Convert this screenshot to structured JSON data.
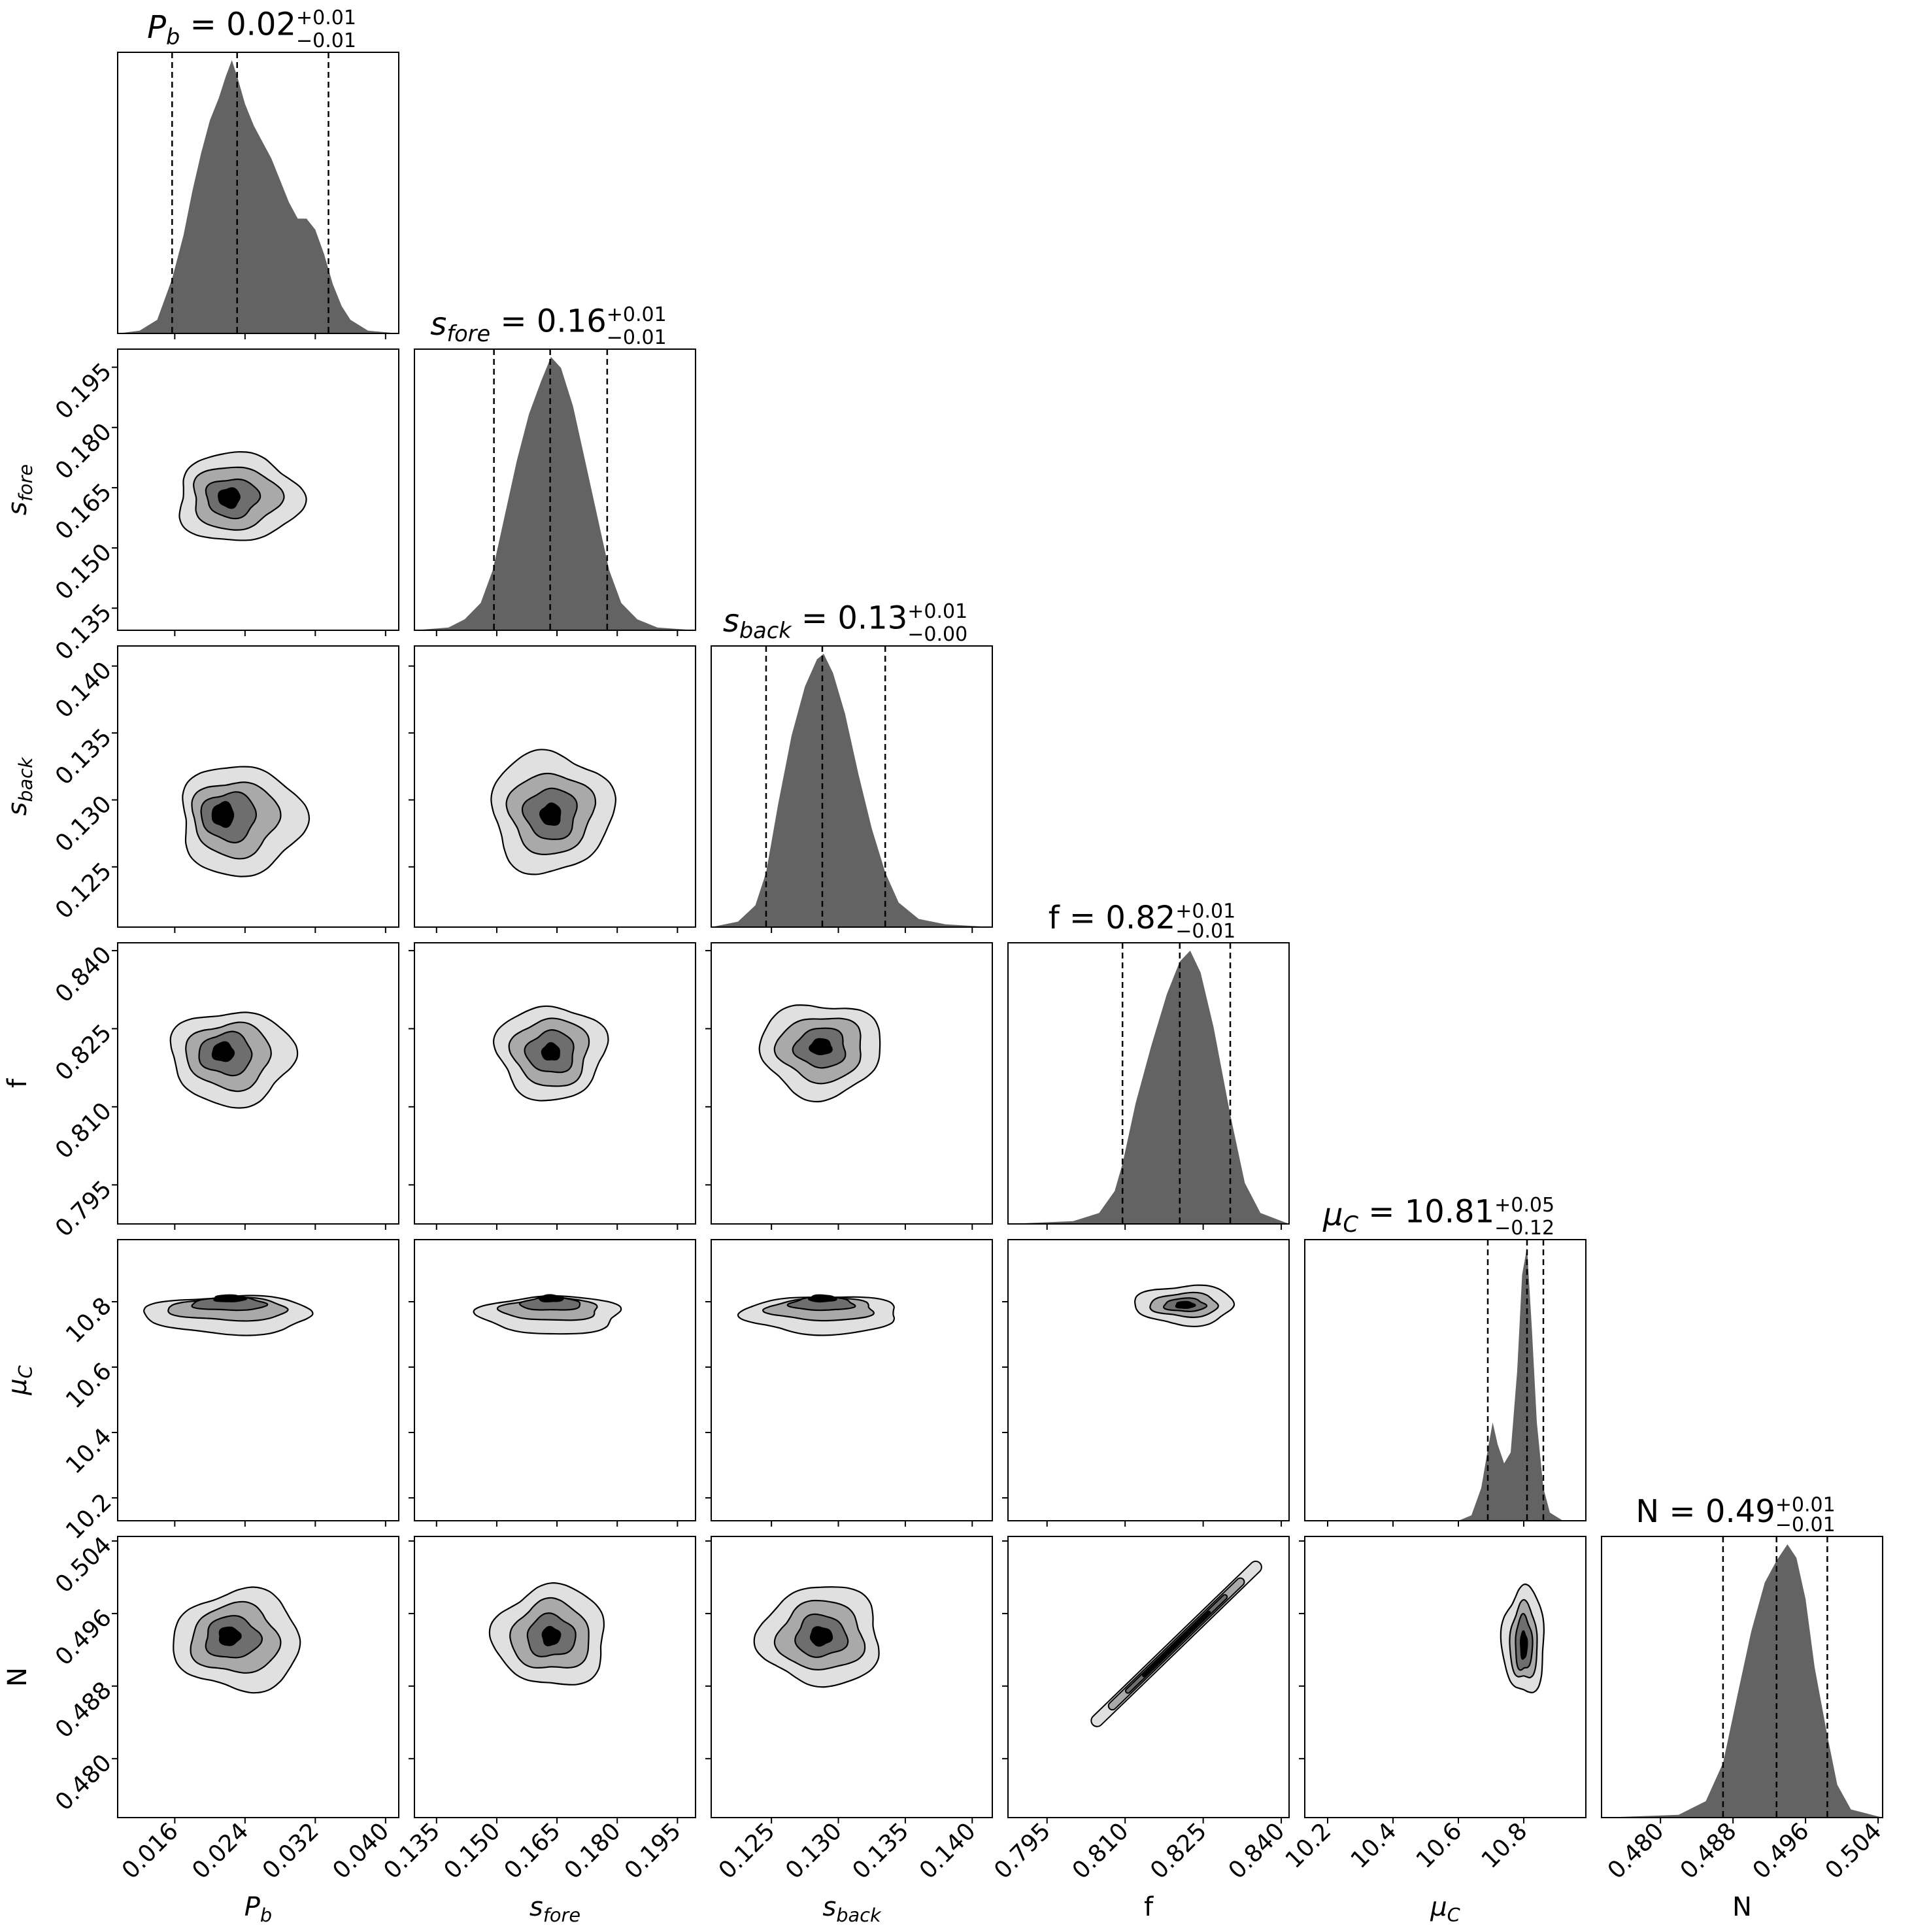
{
  "chart_data": {
    "type": "corner",
    "figure_title": "",
    "parameters": [
      {
        "key": "Pb",
        "label": "P",
        "sub": "b",
        "median": "0.02",
        "plus": "+0.01",
        "minus": "−0.01",
        "range": [
          0.0095,
          0.0415
        ],
        "ticks": [
          "0.016",
          "0.024",
          "0.032",
          "0.040"
        ],
        "tick_values": [
          0.016,
          0.024,
          0.032,
          0.04
        ],
        "quantiles": [
          0.0157,
          0.0231,
          0.0335
        ],
        "hist_curve": [
          [
            0.0095,
            0.0
          ],
          [
            0.012,
            0.01
          ],
          [
            0.014,
            0.05
          ],
          [
            0.0157,
            0.2
          ],
          [
            0.017,
            0.36
          ],
          [
            0.018,
            0.52
          ],
          [
            0.019,
            0.66
          ],
          [
            0.02,
            0.78
          ],
          [
            0.021,
            0.86
          ],
          [
            0.0218,
            0.94
          ],
          [
            0.0225,
            1.0
          ],
          [
            0.0232,
            0.93
          ],
          [
            0.024,
            0.84
          ],
          [
            0.025,
            0.76
          ],
          [
            0.026,
            0.7
          ],
          [
            0.027,
            0.64
          ],
          [
            0.028,
            0.56
          ],
          [
            0.029,
            0.48
          ],
          [
            0.03,
            0.42
          ],
          [
            0.031,
            0.42
          ],
          [
            0.032,
            0.38
          ],
          [
            0.033,
            0.29
          ],
          [
            0.034,
            0.18
          ],
          [
            0.035,
            0.1
          ],
          [
            0.036,
            0.05
          ],
          [
            0.038,
            0.01
          ],
          [
            0.0415,
            0.0
          ]
        ]
      },
      {
        "key": "sfore",
        "label": "s",
        "sub": "fore",
        "median": "0.16",
        "plus": "+0.01",
        "minus": "−0.01",
        "range": [
          0.1295,
          0.1995
        ],
        "ticks": [
          "0.135",
          "0.150",
          "0.165",
          "0.180",
          "0.195"
        ],
        "tick_values": [
          0.135,
          0.15,
          0.165,
          0.18,
          0.195
        ],
        "quantiles": [
          0.1493,
          0.1633,
          0.1775
        ],
        "hist_curve": [
          [
            0.1295,
            0.0
          ],
          [
            0.138,
            0.01
          ],
          [
            0.142,
            0.04
          ],
          [
            0.146,
            0.1
          ],
          [
            0.149,
            0.22
          ],
          [
            0.152,
            0.42
          ],
          [
            0.155,
            0.62
          ],
          [
            0.158,
            0.79
          ],
          [
            0.161,
            0.91
          ],
          [
            0.1635,
            1.0
          ],
          [
            0.166,
            0.96
          ],
          [
            0.169,
            0.82
          ],
          [
            0.172,
            0.62
          ],
          [
            0.175,
            0.42
          ],
          [
            0.178,
            0.22
          ],
          [
            0.181,
            0.1
          ],
          [
            0.185,
            0.04
          ],
          [
            0.19,
            0.01
          ],
          [
            0.1995,
            0.0
          ]
        ]
      },
      {
        "key": "sback",
        "label": "s",
        "sub": "back",
        "median": "0.13",
        "plus": "+0.01",
        "minus": "−0.00",
        "range": [
          0.1205,
          0.1415
        ],
        "ticks": [
          "0.125",
          "0.130",
          "0.135",
          "0.140"
        ],
        "tick_values": [
          0.125,
          0.13,
          0.135,
          0.14
        ],
        "quantiles": [
          0.1246,
          0.1288,
          0.1335
        ],
        "hist_curve": [
          [
            0.1205,
            0.0
          ],
          [
            0.1225,
            0.02
          ],
          [
            0.1238,
            0.08
          ],
          [
            0.1246,
            0.2
          ],
          [
            0.1255,
            0.45
          ],
          [
            0.1265,
            0.7
          ],
          [
            0.1275,
            0.88
          ],
          [
            0.1284,
            0.98
          ],
          [
            0.1289,
            1.0
          ],
          [
            0.1296,
            0.93
          ],
          [
            0.1305,
            0.78
          ],
          [
            0.1315,
            0.56
          ],
          [
            0.1325,
            0.36
          ],
          [
            0.1335,
            0.2
          ],
          [
            0.1345,
            0.09
          ],
          [
            0.136,
            0.03
          ],
          [
            0.138,
            0.01
          ],
          [
            0.1415,
            0.0
          ]
        ]
      },
      {
        "key": "f",
        "label": "f",
        "sub": "",
        "median": "0.82",
        "plus": "+0.01",
        "minus": "−0.01",
        "range": [
          0.7875,
          0.8415
        ],
        "ticks": [
          "0.795",
          "0.810",
          "0.825",
          "0.840"
        ],
        "tick_values": [
          0.795,
          0.81,
          0.825,
          0.84
        ],
        "quantiles": [
          0.8095,
          0.8205,
          0.8302
        ],
        "hist_curve": [
          [
            0.7875,
            0.0
          ],
          [
            0.8,
            0.01
          ],
          [
            0.805,
            0.04
          ],
          [
            0.808,
            0.12
          ],
          [
            0.8095,
            0.22
          ],
          [
            0.812,
            0.44
          ],
          [
            0.815,
            0.65
          ],
          [
            0.818,
            0.84
          ],
          [
            0.8205,
            0.96
          ],
          [
            0.8225,
            1.0
          ],
          [
            0.8245,
            0.92
          ],
          [
            0.827,
            0.72
          ],
          [
            0.8302,
            0.4
          ],
          [
            0.833,
            0.15
          ],
          [
            0.836,
            0.04
          ],
          [
            0.8415,
            0.0
          ]
        ]
      },
      {
        "key": "muC",
        "label": "μ",
        "sub": "C",
        "median": "10.81",
        "plus": "+0.05",
        "minus": "−0.12",
        "range": [
          10.13,
          10.99
        ],
        "ticks": [
          "10.2",
          "10.4",
          "10.6",
          "10.8"
        ],
        "tick_values": [
          10.2,
          10.4,
          10.6,
          10.8
        ],
        "quantiles": [
          10.69,
          10.81,
          10.86
        ],
        "hist_curve": [
          [
            10.13,
            0.0
          ],
          [
            10.6,
            0.0
          ],
          [
            10.64,
            0.02
          ],
          [
            10.67,
            0.12
          ],
          [
            10.69,
            0.26
          ],
          [
            10.705,
            0.36
          ],
          [
            10.72,
            0.28
          ],
          [
            10.74,
            0.21
          ],
          [
            10.76,
            0.25
          ],
          [
            10.78,
            0.55
          ],
          [
            10.795,
            0.9
          ],
          [
            10.81,
            1.0
          ],
          [
            10.825,
            0.7
          ],
          [
            10.84,
            0.36
          ],
          [
            10.86,
            0.12
          ],
          [
            10.88,
            0.03
          ],
          [
            10.92,
            0.0
          ],
          [
            10.99,
            0.0
          ]
        ]
      },
      {
        "key": "N",
        "label": "N",
        "sub": "",
        "median": "0.49",
        "plus": "+0.01",
        "minus": "−0.01",
        "range": [
          0.4735,
          0.5045
        ],
        "ticks": [
          "0.480",
          "0.488",
          "0.496",
          "0.504"
        ],
        "tick_values": [
          0.48,
          0.488,
          0.496,
          0.504
        ],
        "quantiles": [
          0.4869,
          0.4928,
          0.4984
        ],
        "hist_curve": [
          [
            0.4735,
            0.0
          ],
          [
            0.482,
            0.01
          ],
          [
            0.485,
            0.06
          ],
          [
            0.4869,
            0.2
          ],
          [
            0.4885,
            0.45
          ],
          [
            0.49,
            0.68
          ],
          [
            0.4915,
            0.86
          ],
          [
            0.4928,
            0.94
          ],
          [
            0.494,
            1.0
          ],
          [
            0.495,
            0.95
          ],
          [
            0.496,
            0.8
          ],
          [
            0.497,
            0.55
          ],
          [
            0.4984,
            0.3
          ],
          [
            0.4995,
            0.12
          ],
          [
            0.501,
            0.03
          ],
          [
            0.5045,
            0.0
          ]
        ]
      }
    ],
    "contour_fills": [
      "#e0e0e0",
      "#a9a9a9",
      "#6e6e6e",
      "#000000"
    ],
    "pairs": [
      {
        "row": 1,
        "col": 0,
        "center": [
          0.0222,
          0.1625
        ],
        "radii": [
          [
            0.007,
            0.011
          ],
          [
            0.005,
            0.0078
          ],
          [
            0.003,
            0.0048
          ],
          [
            0.0012,
            0.0024
          ]
        ],
        "offset": [
          0.001,
          0.0
        ]
      },
      {
        "row": 2,
        "col": 0,
        "center": [
          0.0215,
          0.1289
        ],
        "radii": [
          [
            0.007,
            0.0041
          ],
          [
            0.0049,
            0.0028
          ],
          [
            0.0031,
            0.0018
          ],
          [
            0.0012,
            0.0009
          ]
        ],
        "offset": [
          0.002,
          -0.0004
        ]
      },
      {
        "row": 2,
        "col": 1,
        "center": [
          0.1635,
          0.1289
        ],
        "radii": [
          [
            0.015,
            0.0045
          ],
          [
            0.0105,
            0.003
          ],
          [
            0.0065,
            0.0019
          ],
          [
            0.0025,
            0.0008
          ]
        ],
        "offset": [
          0.0,
          0.0002
        ]
      },
      {
        "row": 3,
        "col": 0,
        "center": [
          0.0215,
          0.8205
        ],
        "radii": [
          [
            0.007,
            0.009
          ],
          [
            0.0048,
            0.0063
          ],
          [
            0.003,
            0.004
          ],
          [
            0.0012,
            0.0018
          ]
        ],
        "offset": [
          0.001,
          -0.001
        ]
      },
      {
        "row": 3,
        "col": 1,
        "center": [
          0.1635,
          0.8205
        ],
        "radii": [
          [
            0.0135,
            0.009
          ],
          [
            0.0095,
            0.0065
          ],
          [
            0.006,
            0.004
          ],
          [
            0.0022,
            0.0016
          ]
        ],
        "offset": [
          0.0,
          0.0
        ]
      },
      {
        "row": 3,
        "col": 2,
        "center": [
          0.1287,
          0.8215
        ],
        "radii": [
          [
            0.0045,
            0.009
          ],
          [
            0.0032,
            0.0062
          ],
          [
            0.0019,
            0.0038
          ],
          [
            0.0008,
            0.0015
          ]
        ],
        "offset": [
          0.0,
          -0.0005
        ]
      },
      {
        "row": 4,
        "col": 0,
        "center": [
          0.0222,
          10.81
        ],
        "radii": [
          [
            0.0095,
            0.058
          ],
          [
            0.0068,
            0.034
          ],
          [
            0.0042,
            0.02
          ],
          [
            0.0018,
            0.01
          ]
        ],
        "offset": [
          0.0,
          -0.05
        ]
      },
      {
        "row": 4,
        "col": 1,
        "center": [
          0.1635,
          10.81
        ],
        "radii": [
          [
            0.0175,
            0.058
          ],
          [
            0.0122,
            0.034
          ],
          [
            0.0075,
            0.02
          ],
          [
            0.003,
            0.01
          ]
        ],
        "offset": [
          0.0,
          -0.05
        ]
      },
      {
        "row": 4,
        "col": 2,
        "center": [
          0.1288,
          10.81
        ],
        "radii": [
          [
            0.0058,
            0.058
          ],
          [
            0.004,
            0.034
          ],
          [
            0.0024,
            0.02
          ],
          [
            0.001,
            0.01
          ]
        ],
        "offset": [
          0.0,
          -0.05
        ]
      },
      {
        "row": 4,
        "col": 3,
        "center": [
          0.8215,
          10.79
        ],
        "radii": [
          [
            0.0095,
            0.06
          ],
          [
            0.0065,
            0.036
          ],
          [
            0.004,
            0.02
          ],
          [
            0.0018,
            0.01
          ]
        ],
        "offset": [
          0.0,
          0.0
        ]
      },
      {
        "row": 5,
        "col": 0,
        "center": [
          0.0222,
          0.4935
        ],
        "radii": [
          [
            0.0072,
            0.0055
          ],
          [
            0.005,
            0.0038
          ],
          [
            0.0031,
            0.0023
          ],
          [
            0.0012,
            0.001
          ]
        ],
        "offset": [
          0.001,
          -0.0005
        ]
      },
      {
        "row": 5,
        "col": 1,
        "center": [
          0.1635,
          0.4935
        ],
        "radii": [
          [
            0.014,
            0.0055
          ],
          [
            0.0098,
            0.0038
          ],
          [
            0.006,
            0.0023
          ],
          [
            0.0022,
            0.001
          ]
        ],
        "offset": [
          0.0,
          0.0
        ]
      },
      {
        "row": 5,
        "col": 2,
        "center": [
          0.1287,
          0.4935
        ],
        "radii": [
          [
            0.0045,
            0.0055
          ],
          [
            0.0032,
            0.0038
          ],
          [
            0.0019,
            0.0023
          ],
          [
            0.0008,
            0.001
          ]
        ],
        "offset": [
          0.0,
          0.0
        ]
      },
      {
        "row": 5,
        "col": 4,
        "center": [
          10.8,
          0.4925
        ],
        "radii": [
          [
            0.065,
            0.0058
          ],
          [
            0.042,
            0.0042
          ],
          [
            0.026,
            0.003
          ],
          [
            0.01,
            0.0015
          ]
        ],
        "offset": [
          0.0,
          0.0005
        ]
      }
    ],
    "diagonal_pair": {
      "row": 5,
      "col": 3,
      "from": [
        0.8095,
        0.4869
      ],
      "to": [
        0.8302,
        0.4984
      ],
      "widths": [
        9,
        6,
        3.5,
        1.5
      ]
    }
  }
}
